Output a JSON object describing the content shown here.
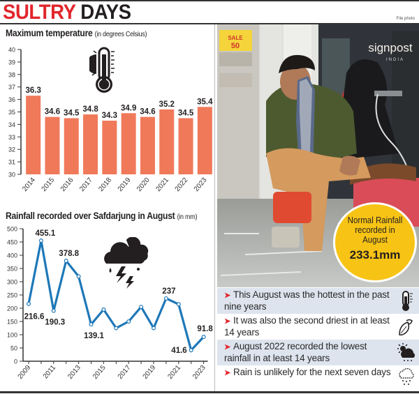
{
  "header": {
    "title_part1": "SULTRY",
    "title_part2": "DAYS",
    "credit": "File photo"
  },
  "colors": {
    "headline_red": "#e1262c",
    "bar_fill": "#f0795a",
    "line_stroke": "#1e78b8",
    "callout_yellow": "#f7c315",
    "fact_shading": "#dde4ee",
    "bullet_arrow": "#e1262c"
  },
  "temperature_chart": {
    "title": "Maximum temperature",
    "unit": "(in degrees Celsius)",
    "icon": "thermometer-sun-icon"
  },
  "rainfall_chart": {
    "title": "Rainfall recorded over Safdarjung in August",
    "unit": "(in mm)",
    "icon": "thunderstorm-cloud-icon"
  },
  "photo": {
    "description": "Man sitting on a red stool wiping his face with a checked towel outside a store",
    "store_sign": "signpost",
    "store_sign_sub": "INDIA",
    "sale_sign_line1": "SALE",
    "sale_sign_line2": "50"
  },
  "callout": {
    "line1": "Normal Rainfall",
    "line2": "recorded in",
    "line3": "August",
    "value": "233.1mm"
  },
  "facts": [
    {
      "text": "This August was the hottest in the past nine years",
      "icon": "thermometer-icon"
    },
    {
      "text": "It was also the second driest in at least 14 years",
      "icon": "dry-leaf-icon"
    },
    {
      "text": "August 2022 recorded the lowest rainfall in at least 14 years",
      "icon": "sun-cloud-rain-icon"
    },
    {
      "text": "Rain is unlikely for the next seven days",
      "icon": "rain-cloud-icon"
    }
  ],
  "chart_data": [
    {
      "type": "bar",
      "title": "Maximum temperature (in degrees Celsius)",
      "xlabel": "",
      "ylabel": "Temperature (°C)",
      "categories": [
        "2014",
        "2015",
        "2016",
        "2017",
        "2018",
        "2019",
        "2020",
        "2021",
        "2022",
        "2023"
      ],
      "values": [
        36.3,
        34.6,
        34.5,
        34.8,
        34.3,
        34.9,
        34.6,
        35.2,
        34.5,
        35.4
      ],
      "data_labels": [
        "36.3",
        "34.6",
        "34.5",
        "34.8",
        "34.3",
        "34.9",
        "34.6",
        "35.2",
        "34.5",
        "35.4"
      ],
      "ylim": [
        30,
        40
      ],
      "yticks": [
        30,
        31,
        32,
        33,
        34,
        35,
        36,
        37,
        38,
        39,
        40
      ],
      "grid": false,
      "legend": "none"
    },
    {
      "type": "line",
      "title": "Rainfall recorded over Safdarjung in August (in mm)",
      "xlabel": "",
      "ylabel": "Rainfall (mm)",
      "x": [
        2009,
        2010,
        2011,
        2012,
        2013,
        2014,
        2015,
        2016,
        2017,
        2018,
        2019,
        2020,
        2021,
        2022,
        2023
      ],
      "values": [
        216.6,
        455.1,
        190.3,
        378.8,
        320,
        139.1,
        195,
        125,
        150,
        205,
        125,
        237,
        215,
        41.6,
        91.8
      ],
      "labeled_points": {
        "2009": "216.6",
        "2010": "455.1",
        "2011": "190.3",
        "2012": "378.8",
        "2014": "139.1",
        "2020": "237",
        "2022": "41.6",
        "2023": "91.8"
      },
      "xtick_labels": [
        "2009",
        "2011",
        "2013",
        "2015",
        "2017",
        "2019",
        "2021",
        "2023"
      ],
      "ylim": [
        0,
        500
      ],
      "yticks": [
        0,
        50,
        100,
        150,
        200,
        250,
        300,
        350,
        400,
        450,
        500
      ],
      "grid": false,
      "legend": "none"
    }
  ]
}
